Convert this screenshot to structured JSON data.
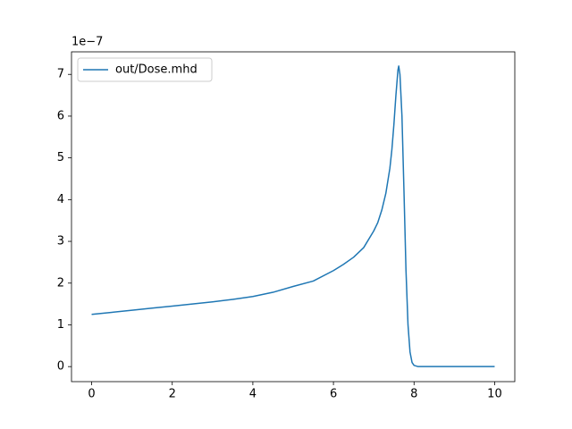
{
  "chart_data": {
    "type": "line",
    "offset_text": "1e−7",
    "x": [
      0,
      0.5,
      1,
      1.5,
      2,
      2.5,
      3,
      3.5,
      4,
      4.5,
      5,
      5.5,
      6,
      6.25,
      6.5,
      6.75,
      7,
      7.1,
      7.2,
      7.3,
      7.4,
      7.45,
      7.5,
      7.55,
      7.6,
      7.62,
      7.65,
      7.7,
      7.75,
      7.8,
      7.85,
      7.9,
      7.95,
      8,
      8.1,
      9,
      10
    ],
    "series": [
      {
        "name": "out/Dose.mhd",
        "color": "#1f77b4",
        "values": [
          1.25,
          1.3,
          1.35,
          1.4,
          1.45,
          1.5,
          1.55,
          1.61,
          1.68,
          1.78,
          1.92,
          2.05,
          2.3,
          2.45,
          2.62,
          2.85,
          3.25,
          3.45,
          3.75,
          4.15,
          4.75,
          5.2,
          5.8,
          6.5,
          7.1,
          7.2,
          7.0,
          6.0,
          4.2,
          2.3,
          1.0,
          0.35,
          0.1,
          0.03,
          0.0,
          0.0,
          0.0
        ]
      }
    ],
    "xlim": [
      -0.5,
      10.5
    ],
    "ylim": [
      -0.36,
      7.54
    ],
    "xticks": [
      0,
      2,
      4,
      6,
      8,
      10
    ],
    "yticks": [
      0,
      1,
      2,
      3,
      4,
      5,
      6,
      7
    ],
    "grid": false,
    "legend": "upper left"
  }
}
